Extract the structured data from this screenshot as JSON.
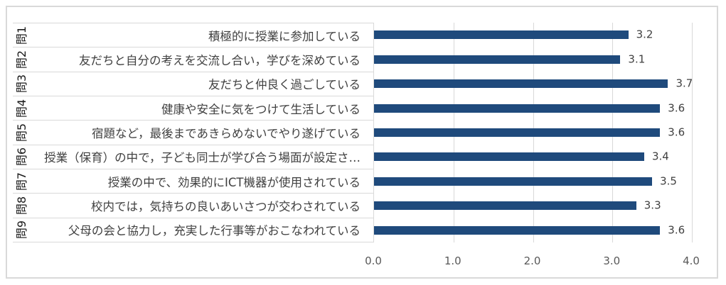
{
  "chart_data": {
    "type": "bar",
    "orientation": "horizontal",
    "title": "",
    "xlabel": "",
    "ylabel": "",
    "question_labels": [
      "問1",
      "問2",
      "問3",
      "問4",
      "問5",
      "問6",
      "問7",
      "問8",
      "問9"
    ],
    "categories": [
      "積極的に授業に参加している",
      "友だちと自分の考えを交流し合い，学びを深めている",
      "友だちと仲良く過ごしている",
      "健康や安全に気をつけて生活している",
      "宿題など，最後まであきらめないでやり遂げている",
      "授業（保育）の中で，子ども同士が学び合う場面が設定さ…",
      "授業の中で、効果的にICT機器が使用されている",
      "校内では，気持ちの良いあいさつが交わされている",
      "父母の会と協力し，充実した行事等がおこなわれている"
    ],
    "values": [
      3.2,
      3.1,
      3.7,
      3.6,
      3.6,
      3.4,
      3.5,
      3.3,
      3.6
    ],
    "data_labels": [
      "3.2",
      "3.1",
      "3.7",
      "3.6",
      "3.6",
      "3.4",
      "3.5",
      "3.3",
      "3.6"
    ],
    "xlim": [
      0,
      4
    ],
    "x_ticks": [
      "0.0",
      "1.0",
      "2.0",
      "3.0",
      "4.0"
    ],
    "grid": "vertical",
    "legend": null,
    "colors": {
      "bar": "#1F4A7C",
      "grid": "#D9D9D9",
      "tick_text": "#595959",
      "label_text": "#404040"
    }
  }
}
